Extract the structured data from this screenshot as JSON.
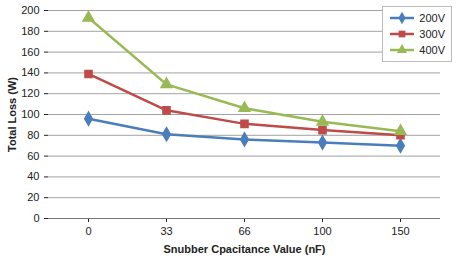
{
  "chart_data": {
    "type": "line",
    "x_label": "Snubber Cpacitance Value (nF)",
    "y_label": "Total Loss (W)",
    "categories": [
      0,
      33,
      66,
      100,
      150
    ],
    "series": [
      {
        "name": "200V",
        "color": "#4a7ebb",
        "marker": "diamond",
        "values": [
          96,
          81,
          76,
          73,
          70
        ]
      },
      {
        "name": "300V",
        "color": "#be4b48",
        "marker": "square",
        "values": [
          139,
          104,
          91,
          85,
          80
        ]
      },
      {
        "name": "400V",
        "color": "#98b954",
        "marker": "triangle",
        "values": [
          193,
          129,
          106,
          93,
          84
        ]
      }
    ],
    "ylim": [
      0,
      200
    ],
    "yticks": [
      0,
      20,
      40,
      60,
      80,
      100,
      120,
      140,
      160,
      180,
      200
    ],
    "grid": true,
    "legend": "top-right"
  }
}
